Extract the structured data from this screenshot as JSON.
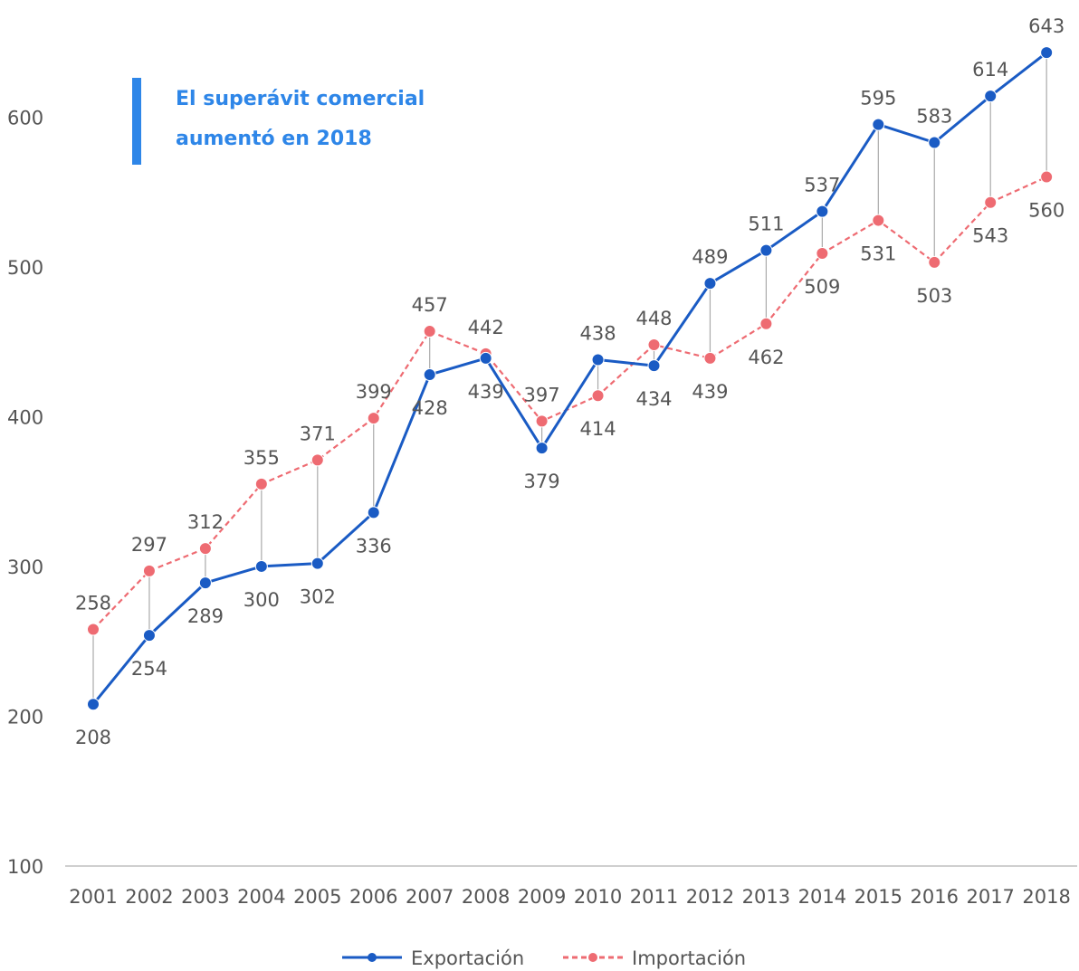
{
  "chart_data": {
    "type": "line",
    "title": "",
    "xlabel": "",
    "ylabel": "",
    "ylim": [
      100,
      650
    ],
    "yticks": [
      100,
      200,
      300,
      400,
      500,
      600
    ],
    "grid": false,
    "legend_position": "bottom",
    "categories": [
      "2001",
      "2002",
      "2003",
      "2004",
      "2005",
      "2006",
      "2007",
      "2008",
      "2009",
      "2010",
      "2011",
      "2012",
      "2013",
      "2014",
      "2015",
      "2016",
      "2017",
      "2018"
    ],
    "series": [
      {
        "name": "Exportación",
        "color": "#1A5BC4",
        "line_style": "solid",
        "values": [
          208,
          254,
          289,
          300,
          302,
          336,
          428,
          439,
          379,
          438,
          434,
          489,
          511,
          537,
          595,
          583,
          614,
          643
        ]
      },
      {
        "name": "Importación",
        "color": "#EE6B72",
        "line_style": "dashed",
        "values": [
          258,
          297,
          312,
          355,
          371,
          399,
          457,
          442,
          397,
          414,
          448,
          439,
          462,
          509,
          531,
          503,
          543,
          560
        ]
      }
    ],
    "annotation": {
      "line1": "El superávit comercial",
      "line2": "aumentó en 2018",
      "color": "#2E86E8"
    },
    "connector_color": "#AAAAAA",
    "axis_color": "#BFBFBF"
  }
}
